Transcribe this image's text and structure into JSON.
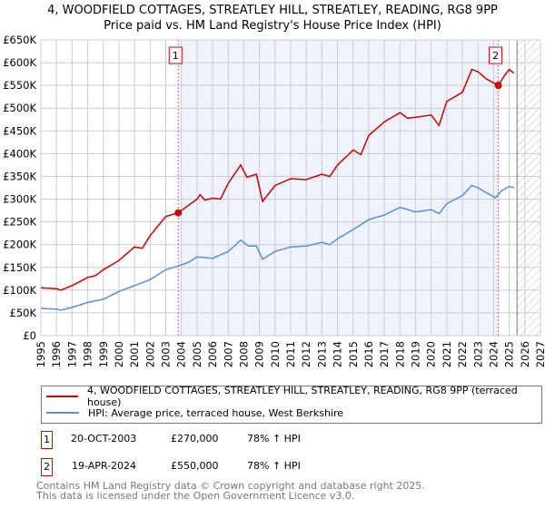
{
  "title_line1": "4, WOODFIELD COTTAGES, STREATLEY HILL, STREATLEY, READING, RG8 9PP",
  "title_line2": "Price paid vs. HM Land Registry's House Price Index (HPI)",
  "chart_data": {
    "type": "line",
    "title": "4, WOODFIELD COTTAGES, STREATLEY HILL, STREATLEY, READING, RG8 9PP — Price paid vs. HM Land Registry's House Price Index (HPI)",
    "xlim": [
      1995,
      2027
    ],
    "ylim": [
      0,
      650000
    ],
    "x_ticks": [
      "1995",
      "1996",
      "1997",
      "1998",
      "1999",
      "2000",
      "2001",
      "2002",
      "2003",
      "2004",
      "2005",
      "2006",
      "2007",
      "2008",
      "2009",
      "2010",
      "2011",
      "2012",
      "2013",
      "2014",
      "2015",
      "2016",
      "2017",
      "2018",
      "2019",
      "2020",
      "2021",
      "2022",
      "2023",
      "2024",
      "2025",
      "2026",
      "2027"
    ],
    "y_ticks": [
      {
        "v": 0,
        "label": "£0"
      },
      {
        "v": 50000,
        "label": "£50K"
      },
      {
        "v": 100000,
        "label": "£100K"
      },
      {
        "v": 150000,
        "label": "£150K"
      },
      {
        "v": 200000,
        "label": "£200K"
      },
      {
        "v": 250000,
        "label": "£250K"
      },
      {
        "v": 300000,
        "label": "£300K"
      },
      {
        "v": 350000,
        "label": "£350K"
      },
      {
        "v": 400000,
        "label": "£400K"
      },
      {
        "v": 450000,
        "label": "£450K"
      },
      {
        "v": 500000,
        "label": "£500K"
      },
      {
        "v": 550000,
        "label": "£550K"
      },
      {
        "v": 600000,
        "label": "£600K"
      },
      {
        "v": 650000,
        "label": "£650K"
      }
    ],
    "grid": true,
    "shaded_period": [
      2003.8,
      2024.3
    ],
    "forecast_from": 2025.5,
    "series": [
      {
        "name": "4, WOODFIELD COTTAGES, STREATLEY HILL, STREATLEY, READING, RG8 9PP (terraced house)",
        "color": "#cc0000",
        "x": [
          1995,
          1996,
          1996.3,
          1997,
          1998,
          1998.5,
          1999,
          2000,
          2001,
          2001.5,
          2002,
          2003,
          2003.8,
          2005,
          2005.2,
          2005.5,
          2006,
          2006.5,
          2007,
          2007.8,
          2008.2,
          2008.8,
          2009.2,
          2010,
          2011,
          2012,
          2013,
          2013.5,
          2014,
          2015,
          2015.5,
          2016,
          2017,
          2018,
          2018.5,
          2019,
          2020,
          2020.5,
          2021,
          2022,
          2022.6,
          2023,
          2023.5,
          2024.3,
          2024.7,
          2025,
          2025.3
        ],
        "y": [
          105000,
          103000,
          100000,
          110000,
          128000,
          132000,
          145000,
          165000,
          195000,
          192000,
          220000,
          262000,
          270000,
          300000,
          310000,
          298000,
          302000,
          300000,
          335000,
          375000,
          348000,
          355000,
          295000,
          330000,
          345000,
          343000,
          355000,
          350000,
          375000,
          408000,
          398000,
          440000,
          470000,
          490000,
          478000,
          480000,
          485000,
          462000,
          515000,
          535000,
          585000,
          580000,
          565000,
          550000,
          572000,
          585000,
          577000
        ]
      },
      {
        "name": "HPI: Average price, terraced house, West Berkshire",
        "color": "#5b8ed6",
        "x": [
          1995,
          1996,
          1996.3,
          1997,
          1998,
          1999,
          2000,
          2001,
          2002,
          2003,
          2003.8,
          2004.5,
          2005,
          2006,
          2007,
          2007.8,
          2008.3,
          2008.8,
          2009.2,
          2010,
          2011,
          2012,
          2013,
          2013.5,
          2014,
          2015,
          2016,
          2017,
          2018,
          2019,
          2020,
          2020.5,
          2021,
          2022,
          2022.6,
          2023,
          2023.5,
          2024.1,
          2024.5,
          2025,
          2025.3
        ],
        "y": [
          60000,
          58000,
          56000,
          62000,
          73000,
          80000,
          97000,
          110000,
          123000,
          145000,
          153000,
          162000,
          173000,
          170000,
          185000,
          210000,
          197000,
          197000,
          168000,
          185000,
          195000,
          197000,
          205000,
          200000,
          213000,
          233000,
          255000,
          265000,
          282000,
          272000,
          277000,
          268000,
          290000,
          308000,
          330000,
          325000,
          315000,
          303000,
          318000,
          328000,
          325000
        ]
      }
    ],
    "annotations": [
      {
        "label": "1",
        "x": 2003.8,
        "y": 270000
      },
      {
        "label": "2",
        "x": 2024.3,
        "y": 550000
      }
    ]
  },
  "legend": [
    {
      "label": "4, WOODFIELD COTTAGES, STREATLEY HILL, STREATLEY, READING, RG8 9PP (terraced house)",
      "color": "#cc0000"
    },
    {
      "label": "HPI: Average price, terraced house, West Berkshire",
      "color": "#5b8ed6"
    }
  ],
  "sales": [
    {
      "num": "1",
      "date": "20-OCT-2003",
      "price": "£270,000",
      "hpi": "78% ↑ HPI"
    },
    {
      "num": "2",
      "date": "19-APR-2024",
      "price": "£550,000",
      "hpi": "78% ↑ HPI"
    }
  ],
  "footer_line1": "Contains HM Land Registry data © Crown copyright and database right 2025.",
  "footer_line2": "This data is licensed under the Open Government Licence v3.0."
}
